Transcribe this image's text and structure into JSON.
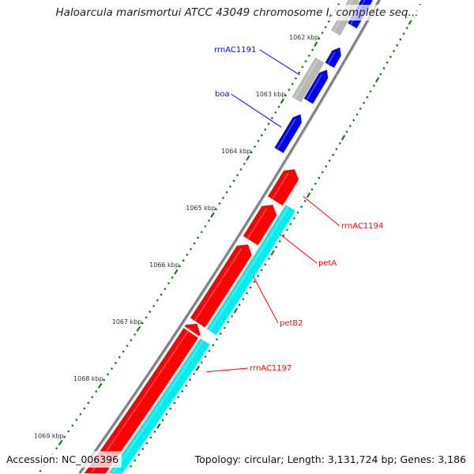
{
  "title": "Haloarcula marismortui ATCC 43049 chromosome I, complete seq...",
  "footer": {
    "accession": "Accession: NC_006396",
    "summary": "Topology: circular; Length: 3,131,724 bp; Genes: 3,186"
  },
  "colors": {
    "backbone": "#808080",
    "ticks": "#1a7a1a",
    "gray_feature": "#b8b8b8",
    "blue_feature": "#0000ee",
    "red_feature": "#ff0000",
    "cyan_feature": "#00eeee",
    "blue_label": "#0000ff",
    "red_label": "#ff0000"
  },
  "ticks": {
    "unit": "kbp",
    "labels": [
      "1062 kbp",
      "1063 kbp",
      "1064 kbp",
      "1065 kbp",
      "1066 kbp",
      "1067 kbp",
      "1068 kbp",
      "1069 kbp"
    ],
    "values": [
      1062,
      1063,
      1064,
      1065,
      1066,
      1067,
      1068,
      1069
    ]
  },
  "features": [
    {
      "track": "gray",
      "start": 1061.1,
      "end": 1061.7,
      "arrow": "none"
    },
    {
      "track": "gray",
      "start": 1062.18,
      "end": 1062.87,
      "arrow": "none"
    },
    {
      "track": "blue",
      "start": 1060.9,
      "end": 1061.48,
      "arrow": "start"
    },
    {
      "track": "blue",
      "start": 1061.86,
      "end": 1062.17,
      "arrow": "start"
    },
    {
      "track": "blue",
      "start": 1062.25,
      "end": 1062.8,
      "arrow": "start"
    },
    {
      "track": "blue",
      "start": 1063.03,
      "end": 1063.66,
      "arrow": "start"
    },
    {
      "track": "red",
      "start": 1063.78,
      "end": 1064.33,
      "arrow": "start"
    },
    {
      "track": "red",
      "start": 1064.4,
      "end": 1065.02,
      "arrow": "start"
    },
    {
      "track": "red",
      "start": 1065.09,
      "end": 1066.45,
      "arrow": "start"
    },
    {
      "track": "red",
      "start": 1066.47,
      "end": 1066.6,
      "arrow": "start"
    },
    {
      "track": "red",
      "start": 1066.63,
      "end": 1069.4,
      "arrow": "none"
    },
    {
      "track": "cyan",
      "start": 1064.3,
      "end": 1066.45,
      "arrow": "none"
    },
    {
      "track": "cyan",
      "start": 1066.62,
      "end": 1069.4,
      "arrow": "none"
    }
  ],
  "labels": [
    {
      "text": "rrnAC1191",
      "color": "blue",
      "feature": 1
    },
    {
      "text": "boa",
      "color": "blue",
      "feature": 5
    },
    {
      "text": "rrnAC1194",
      "color": "red",
      "feature": 6
    },
    {
      "text": "petA",
      "color": "red",
      "feature": 7
    },
    {
      "text": "petB2",
      "color": "red",
      "feature": 8
    },
    {
      "text": "rrnAC1197",
      "color": "red",
      "feature": 12
    }
  ]
}
